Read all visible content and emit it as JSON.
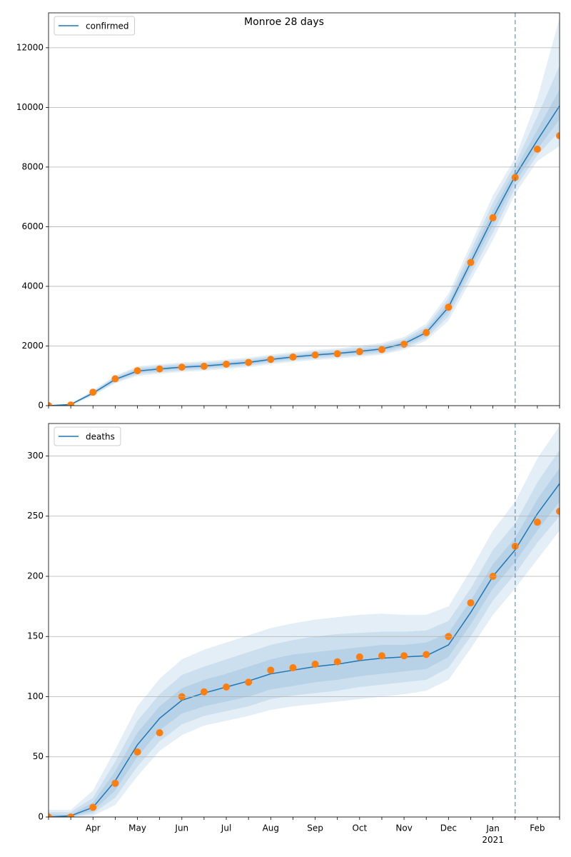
{
  "chart_data": [
    {
      "type": "line",
      "title": "Monroe 28 days",
      "ylim": [
        0,
        13170
      ],
      "yticks": [
        0,
        2000,
        4000,
        6000,
        8000,
        10000,
        12000
      ],
      "grid": true,
      "legend": "upper left",
      "vline_at": 21,
      "vline_color": "#1f77b4",
      "band_color": "#1f77b4",
      "series": [
        {
          "name": "confirmed",
          "color": "#1f77b4",
          "values": [
            0,
            40,
            420,
            880,
            1160,
            1230,
            1290,
            1330,
            1390,
            1450,
            1550,
            1630,
            1700,
            1750,
            1820,
            1900,
            2080,
            2450,
            3300,
            4800,
            6300,
            7700,
            8900,
            10050
          ]
        }
      ],
      "observed": {
        "color": "#ff7f0e",
        "values": [
          0,
          20,
          450,
          900,
          1170,
          1230,
          1290,
          1320,
          1390,
          1450,
          1550,
          1630,
          1700,
          1740,
          1810,
          1880,
          2060,
          2450,
          3300,
          4800,
          6300,
          7650,
          8600,
          9050
        ]
      },
      "bands": [
        {
          "lower": [
            0,
            10,
            330,
            750,
            1000,
            1070,
            1130,
            1170,
            1230,
            1290,
            1390,
            1470,
            1530,
            1580,
            1640,
            1710,
            1870,
            2180,
            2850,
            4200,
            5550,
            7100,
            8200,
            8700
          ],
          "upper": [
            0,
            70,
            510,
            1010,
            1320,
            1390,
            1450,
            1490,
            1550,
            1610,
            1710,
            1790,
            1870,
            1920,
            2010,
            2100,
            2300,
            2750,
            3750,
            5400,
            7050,
            8300,
            10300,
            13000
          ]
        },
        {
          "lower": [
            0,
            20,
            360,
            790,
            1050,
            1120,
            1180,
            1220,
            1280,
            1340,
            1440,
            1520,
            1580,
            1630,
            1690,
            1760,
            1930,
            2260,
            3000,
            4400,
            5800,
            7300,
            8400,
            9200
          ],
          "upper": [
            0,
            60,
            480,
            970,
            1270,
            1340,
            1400,
            1440,
            1500,
            1560,
            1660,
            1740,
            1820,
            1870,
            1950,
            2040,
            2230,
            2650,
            3600,
            5200,
            6800,
            8100,
            9700,
            11400
          ]
        },
        {
          "lower": [
            0,
            30,
            390,
            830,
            1100,
            1170,
            1230,
            1270,
            1330,
            1390,
            1490,
            1570,
            1640,
            1690,
            1750,
            1830,
            2000,
            2350,
            3150,
            4600,
            6050,
            7500,
            8600,
            9600
          ],
          "upper": [
            0,
            50,
            450,
            930,
            1220,
            1290,
            1350,
            1390,
            1450,
            1510,
            1610,
            1690,
            1760,
            1810,
            1890,
            1970,
            2160,
            2550,
            3450,
            5000,
            6550,
            7900,
            9250,
            10600
          ]
        }
      ]
    },
    {
      "type": "line",
      "ylim": [
        0,
        327
      ],
      "yticks": [
        0,
        50,
        100,
        150,
        200,
        250,
        300
      ],
      "grid": true,
      "legend": "upper left",
      "vline_at": 21,
      "vline_color": "#1f77b4",
      "band_color": "#1f77b4",
      "categories": [
        null,
        null,
        "Apr",
        null,
        "May",
        null,
        "Jun",
        null,
        "Jul",
        null,
        "Aug",
        null,
        "Sep",
        null,
        "Oct",
        null,
        "Nov",
        null,
        "Dec",
        null,
        "Jan\n2021",
        null,
        "Feb",
        null
      ],
      "series": [
        {
          "name": "deaths",
          "color": "#1f77b4",
          "values": [
            0,
            1,
            8,
            30,
            60,
            82,
            97,
            103,
            108,
            113,
            119,
            122,
            125,
            127,
            130,
            132,
            133,
            134,
            143,
            170,
            200,
            222,
            252,
            277
          ]
        }
      ],
      "observed": {
        "color": "#ff7f0e",
        "values": [
          0,
          0,
          8,
          28,
          54,
          70,
          100,
          104,
          108,
          112,
          122,
          124,
          127,
          129,
          133,
          134,
          134,
          135,
          150,
          178,
          200,
          225,
          245,
          254
        ]
      },
      "bands": [
        {
          "lower": [
            0,
            0,
            1,
            10,
            34,
            55,
            68,
            76,
            80,
            84,
            89,
            92,
            94,
            96,
            98,
            100,
            102,
            105,
            114,
            140,
            168,
            190,
            214,
            238
          ],
          "upper": [
            6,
            6,
            22,
            56,
            92,
            115,
            131,
            139,
            145,
            151,
            157,
            161,
            164,
            166,
            168,
            169,
            168,
            168,
            175,
            205,
            238,
            262,
            298,
            325
          ]
        },
        {
          "lower": [
            0,
            0,
            3,
            16,
            42,
            63,
            77,
            84,
            88,
            92,
            98,
            101,
            103,
            105,
            108,
            110,
            112,
            114,
            124,
            150,
            180,
            202,
            228,
            250
          ],
          "upper": [
            4,
            4,
            16,
            46,
            80,
            102,
            118,
            125,
            131,
            137,
            143,
            147,
            150,
            152,
            153,
            154,
            154,
            155,
            163,
            190,
            222,
            244,
            278,
            305
          ]
        },
        {
          "lower": [
            0,
            0,
            5,
            22,
            50,
            72,
            86,
            92,
            96,
            100,
            106,
            109,
            112,
            114,
            117,
            119,
            121,
            123,
            133,
            160,
            190,
            212,
            238,
            262
          ],
          "upper": [
            2,
            2,
            12,
            38,
            70,
            92,
            107,
            114,
            119,
            125,
            131,
            135,
            137,
            139,
            141,
            143,
            143,
            145,
            153,
            180,
            210,
            232,
            264,
            290
          ]
        }
      ]
    }
  ]
}
